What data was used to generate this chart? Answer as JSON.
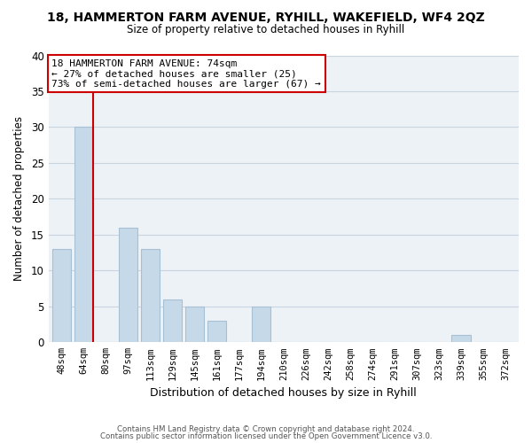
{
  "title": "18, HAMMERTON FARM AVENUE, RYHILL, WAKEFIELD, WF4 2QZ",
  "subtitle": "Size of property relative to detached houses in Ryhill",
  "xlabel": "Distribution of detached houses by size in Ryhill",
  "ylabel": "Number of detached properties",
  "bar_labels": [
    "48sqm",
    "64sqm",
    "80sqm",
    "97sqm",
    "113sqm",
    "129sqm",
    "145sqm",
    "161sqm",
    "177sqm",
    "194sqm",
    "210sqm",
    "226sqm",
    "242sqm",
    "258sqm",
    "274sqm",
    "291sqm",
    "307sqm",
    "323sqm",
    "339sqm",
    "355sqm",
    "372sqm"
  ],
  "bar_values": [
    13,
    30,
    0,
    16,
    13,
    6,
    5,
    3,
    0,
    5,
    0,
    0,
    0,
    0,
    0,
    0,
    0,
    0,
    1,
    0,
    0
  ],
  "bar_color": "#c6d9e8",
  "bar_edge_color": "#a8c0d4",
  "ylim": [
    0,
    40
  ],
  "yticks": [
    0,
    5,
    10,
    15,
    20,
    25,
    30,
    35,
    40
  ],
  "vline_color": "#cc0000",
  "annotation_line1": "18 HAMMERTON FARM AVENUE: 74sqm",
  "annotation_line2": "← 27% of detached houses are smaller (25)",
  "annotation_line3": "73% of semi-detached houses are larger (67) →",
  "footer_line1": "Contains HM Land Registry data © Crown copyright and database right 2024.",
  "footer_line2": "Contains public sector information licensed under the Open Government Licence v3.0.",
  "background_color": "#edf2f7",
  "plot_background": "#ffffff",
  "grid_color": "#c8d4de"
}
